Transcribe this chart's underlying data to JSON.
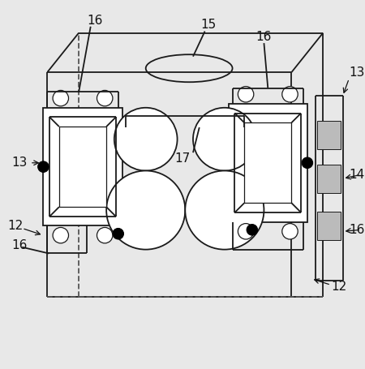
{
  "background_color": "#e8e8e8",
  "line_color": "#1a1a1a",
  "dashed_color": "#555555",
  "fig_width": 4.5,
  "fig_height": 4.55,
  "dpi": 100
}
